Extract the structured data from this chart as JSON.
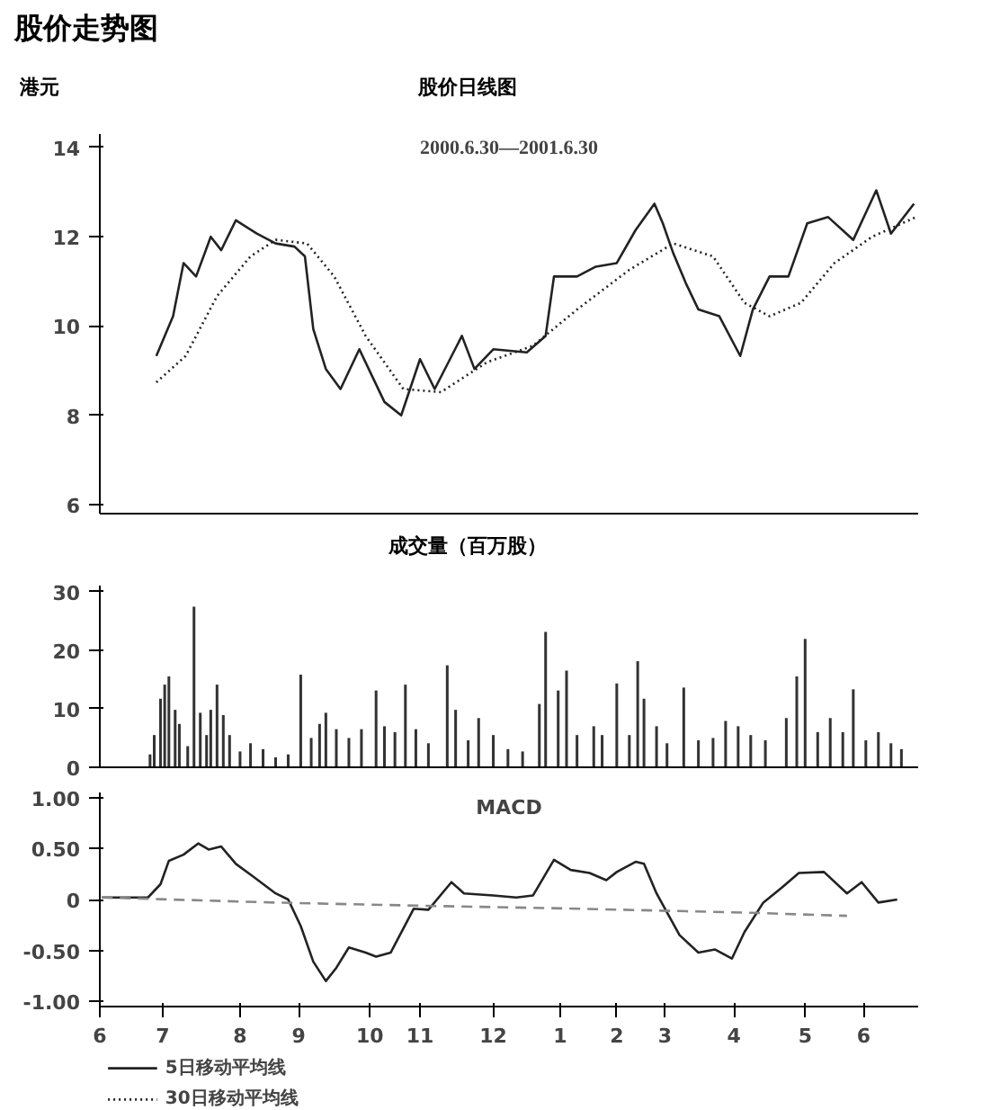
{
  "chart_data": [
    {
      "type": "line",
      "title": "股价走势图",
      "subtitle": "股价日线图",
      "annotations": [
        "2000.6.30—2001.6.30"
      ],
      "ylabel": "港元",
      "xlim": [
        "2000-06-15",
        "2001-07-11"
      ],
      "ylim": [
        5.8,
        14.3
      ],
      "yticks": [
        6,
        8,
        10,
        12,
        14
      ],
      "tick_labels": "y",
      "grid": false,
      "legend": "bottom",
      "series": [
        {
          "name": "5日移动平均线",
          "color": "#222222",
          "line_style": "solid",
          "x": [
            "2000-07-12",
            "2000-07-20",
            "2000-07-25",
            "2000-07-31",
            "2000-08-07",
            "2000-08-12",
            "2000-08-19",
            "2000-08-29",
            "2000-09-07",
            "2000-09-16",
            "2000-09-21",
            "2000-09-25",
            "2000-10-01",
            "2000-10-08",
            "2000-10-17",
            "2000-10-23",
            "2000-10-29",
            "2000-11-06",
            "2000-11-15",
            "2000-11-22",
            "2000-12-05",
            "2000-12-11",
            "2000-12-20",
            "2001-01-05",
            "2001-01-14",
            "2001-01-18",
            "2001-01-29",
            "2001-02-07",
            "2001-02-17",
            "2001-02-26",
            "2001-03-07",
            "2001-03-11",
            "2001-03-16",
            "2001-03-22",
            "2001-03-28",
            "2001-04-07",
            "2001-04-17",
            "2001-04-23",
            "2001-05-01",
            "2001-05-10",
            "2001-05-19",
            "2001-05-29",
            "2001-06-10",
            "2001-06-21",
            "2001-06-28",
            "2001-07-09"
          ],
          "values": [
            9.33,
            10.22,
            11.41,
            11.11,
            12.0,
            11.7,
            12.37,
            12.07,
            11.85,
            11.78,
            11.56,
            9.93,
            9.04,
            8.59,
            9.48,
            8.89,
            8.3,
            8.0,
            9.26,
            8.59,
            9.78,
            9.04,
            9.48,
            9.41,
            9.78,
            11.11,
            11.11,
            11.33,
            11.41,
            12.15,
            12.74,
            12.3,
            11.63,
            10.96,
            10.37,
            10.22,
            9.33,
            10.37,
            11.11,
            11.11,
            12.3,
            12.44,
            11.93,
            13.04,
            12.07,
            12.74
          ]
        },
        {
          "name": "30日移动平均线",
          "color": "#222222",
          "line_style": "dotted",
          "x": [
            "2000-07-12",
            "2000-07-26",
            "2000-08-10",
            "2000-08-26",
            "2000-09-07",
            "2000-09-22",
            "2000-10-05",
            "2000-10-20",
            "2000-11-07",
            "2000-11-25",
            "2000-12-17",
            "2001-01-08",
            "2001-01-29",
            "2001-02-23",
            "2001-03-16",
            "2001-04-04",
            "2001-04-19",
            "2001-05-01",
            "2001-05-16",
            "2001-06-01",
            "2001-06-19",
            "2001-07-10"
          ],
          "values": [
            8.74,
            9.33,
            10.67,
            11.56,
            11.93,
            11.85,
            11.11,
            9.78,
            8.59,
            8.52,
            9.19,
            9.56,
            10.37,
            11.26,
            11.85,
            11.56,
            10.52,
            10.22,
            10.52,
            11.41,
            12.0,
            12.44
          ]
        }
      ]
    },
    {
      "type": "bar",
      "title": "成交量（百万股）",
      "xlim": [
        "2000-06-15",
        "2001-07-11"
      ],
      "ylim": [
        0,
        31
      ],
      "yticks": [
        0,
        10,
        20,
        30
      ],
      "tick_labels": "y",
      "grid": false,
      "color": "#333333",
      "x": [
        "2000-07-09",
        "2000-07-11",
        "2000-07-14",
        "2000-07-16",
        "2000-07-18",
        "2000-07-21",
        "2000-07-23",
        "2000-07-27",
        "2000-07-30",
        "2000-08-02",
        "2000-08-05",
        "2000-08-07",
        "2000-08-10",
        "2000-08-13",
        "2000-08-16",
        "2000-08-21",
        "2000-08-26",
        "2000-09-01",
        "2000-09-07",
        "2000-09-13",
        "2000-09-19",
        "2000-09-24",
        "2000-09-28",
        "2000-10-01",
        "2000-10-06",
        "2000-10-12",
        "2000-10-18",
        "2000-10-25",
        "2000-10-29",
        "2000-11-03",
        "2000-11-08",
        "2000-11-13",
        "2000-11-19",
        "2000-11-28",
        "2000-12-02",
        "2000-12-08",
        "2000-12-13",
        "2000-12-20",
        "2000-12-27",
        "2001-01-03",
        "2001-01-11",
        "2001-01-14",
        "2001-01-20",
        "2001-01-24",
        "2001-01-29",
        "2001-02-06",
        "2001-02-10",
        "2001-02-17",
        "2001-02-23",
        "2001-02-27",
        "2001-03-02",
        "2001-03-08",
        "2001-03-13",
        "2001-03-21",
        "2001-03-28",
        "2001-04-04",
        "2001-04-10",
        "2001-04-16",
        "2001-04-22",
        "2001-04-29",
        "2001-05-09",
        "2001-05-14",
        "2001-05-18",
        "2001-05-24",
        "2001-05-30",
        "2001-06-05",
        "2001-06-10",
        "2001-06-16",
        "2001-06-22",
        "2001-06-28",
        "2001-07-03"
      ],
      "values": [
        2.2,
        5.5,
        11.7,
        14.1,
        15.5,
        9.8,
        7.4,
        3.6,
        27.4,
        9.3,
        5.5,
        9.8,
        14.1,
        8.9,
        5.5,
        2.7,
        4.1,
        3.1,
        1.7,
        2.2,
        15.8,
        5.0,
        7.4,
        9.3,
        6.5,
        5.0,
        6.5,
        13.1,
        7.0,
        6.0,
        14.1,
        6.5,
        4.1,
        17.4,
        9.8,
        4.6,
        8.4,
        5.5,
        3.1,
        2.7,
        10.8,
        23.1,
        13.1,
        16.5,
        5.5,
        7.0,
        5.5,
        14.3,
        5.5,
        18.1,
        11.7,
        7.0,
        4.1,
        13.6,
        4.6,
        5.0,
        7.9,
        7.0,
        5.5,
        4.6,
        8.4,
        15.5,
        21.9,
        6.0,
        8.4,
        6.0,
        13.3,
        4.6,
        6.0,
        4.1,
        3.1
      ]
    },
    {
      "type": "line",
      "title": "MACD",
      "xlim": [
        "2000-06-15",
        "2001-07-11"
      ],
      "ylim": [
        -1.05,
        1.05
      ],
      "yticks": [
        {
          "value": 1.0,
          "label": "1.00"
        },
        {
          "value": 0.5,
          "label": "0.50"
        },
        0,
        {
          "value": -0.5,
          "label": "-0.50"
        },
        {
          "value": -1.0,
          "label": "-1.00"
        }
      ],
      "xticks": [
        {
          "value": "2000-06-15",
          "label": "6"
        },
        {
          "value": "2000-07-15",
          "label": "7"
        },
        {
          "value": "2000-08-21",
          "label": "8"
        },
        {
          "value": "2000-09-18",
          "label": "9"
        },
        {
          "value": "2000-10-22",
          "label": "10"
        },
        {
          "value": "2000-11-15",
          "label": "11"
        },
        {
          "value": "2000-12-20",
          "label": "12"
        },
        {
          "value": "2001-01-21",
          "label": "1"
        },
        {
          "value": "2001-02-17",
          "label": "2"
        },
        {
          "value": "2001-03-12",
          "label": "3"
        },
        {
          "value": "2001-04-14",
          "label": "4"
        },
        {
          "value": "2001-05-18",
          "label": "5"
        },
        {
          "value": "2001-06-15",
          "label": "6"
        }
      ],
      "grid": false,
      "series": [
        {
          "color": "#222222",
          "line_style": "solid",
          "x": [
            "2000-06-16",
            "2000-07-08",
            "2000-07-14",
            "2000-07-18",
            "2000-07-25",
            "2000-08-01",
            "2000-08-06",
            "2000-08-12",
            "2000-08-19",
            "2000-08-27",
            "2000-09-07",
            "2000-09-13",
            "2000-09-19",
            "2000-09-25",
            "2000-10-01",
            "2000-10-06",
            "2000-10-12",
            "2000-10-20",
            "2000-10-25",
            "2000-11-01",
            "2000-11-12",
            "2000-11-19",
            "2000-11-30",
            "2000-12-06",
            "2000-12-20",
            "2000-12-31",
            "2001-01-08",
            "2001-01-18",
            "2001-01-26",
            "2001-02-04",
            "2001-02-12",
            "2001-02-17",
            "2001-02-26",
            "2001-03-02",
            "2001-03-08",
            "2001-03-19",
            "2001-03-28",
            "2001-04-05",
            "2001-04-13",
            "2001-04-19",
            "2001-04-28",
            "2001-05-07",
            "2001-05-15",
            "2001-05-27",
            "2001-06-07",
            "2001-06-14",
            "2001-06-22",
            "2001-07-01"
          ],
          "values": [
            0.02,
            0.02,
            0.15,
            0.38,
            0.44,
            0.55,
            0.49,
            0.52,
            0.35,
            0.23,
            0.06,
            0.0,
            -0.26,
            -0.61,
            -0.8,
            -0.67,
            -0.47,
            -0.52,
            -0.56,
            -0.52,
            -0.09,
            -0.1,
            0.17,
            0.06,
            0.04,
            0.02,
            0.04,
            0.39,
            0.29,
            0.26,
            0.19,
            0.27,
            0.37,
            0.35,
            0.06,
            -0.35,
            -0.52,
            -0.49,
            -0.58,
            -0.32,
            -0.03,
            0.12,
            0.26,
            0.27,
            0.06,
            0.17,
            -0.03,
            0.0
          ]
        },
        {
          "color": "#888888",
          "line_style": "dashed",
          "x": [
            "2000-06-16",
            "2000-09-07",
            "2000-11-13",
            "2001-01-29",
            "2001-04-22",
            "2001-06-07"
          ],
          "values": [
            0.02,
            -0.03,
            -0.06,
            -0.09,
            -0.13,
            -0.16
          ]
        }
      ]
    }
  ]
}
